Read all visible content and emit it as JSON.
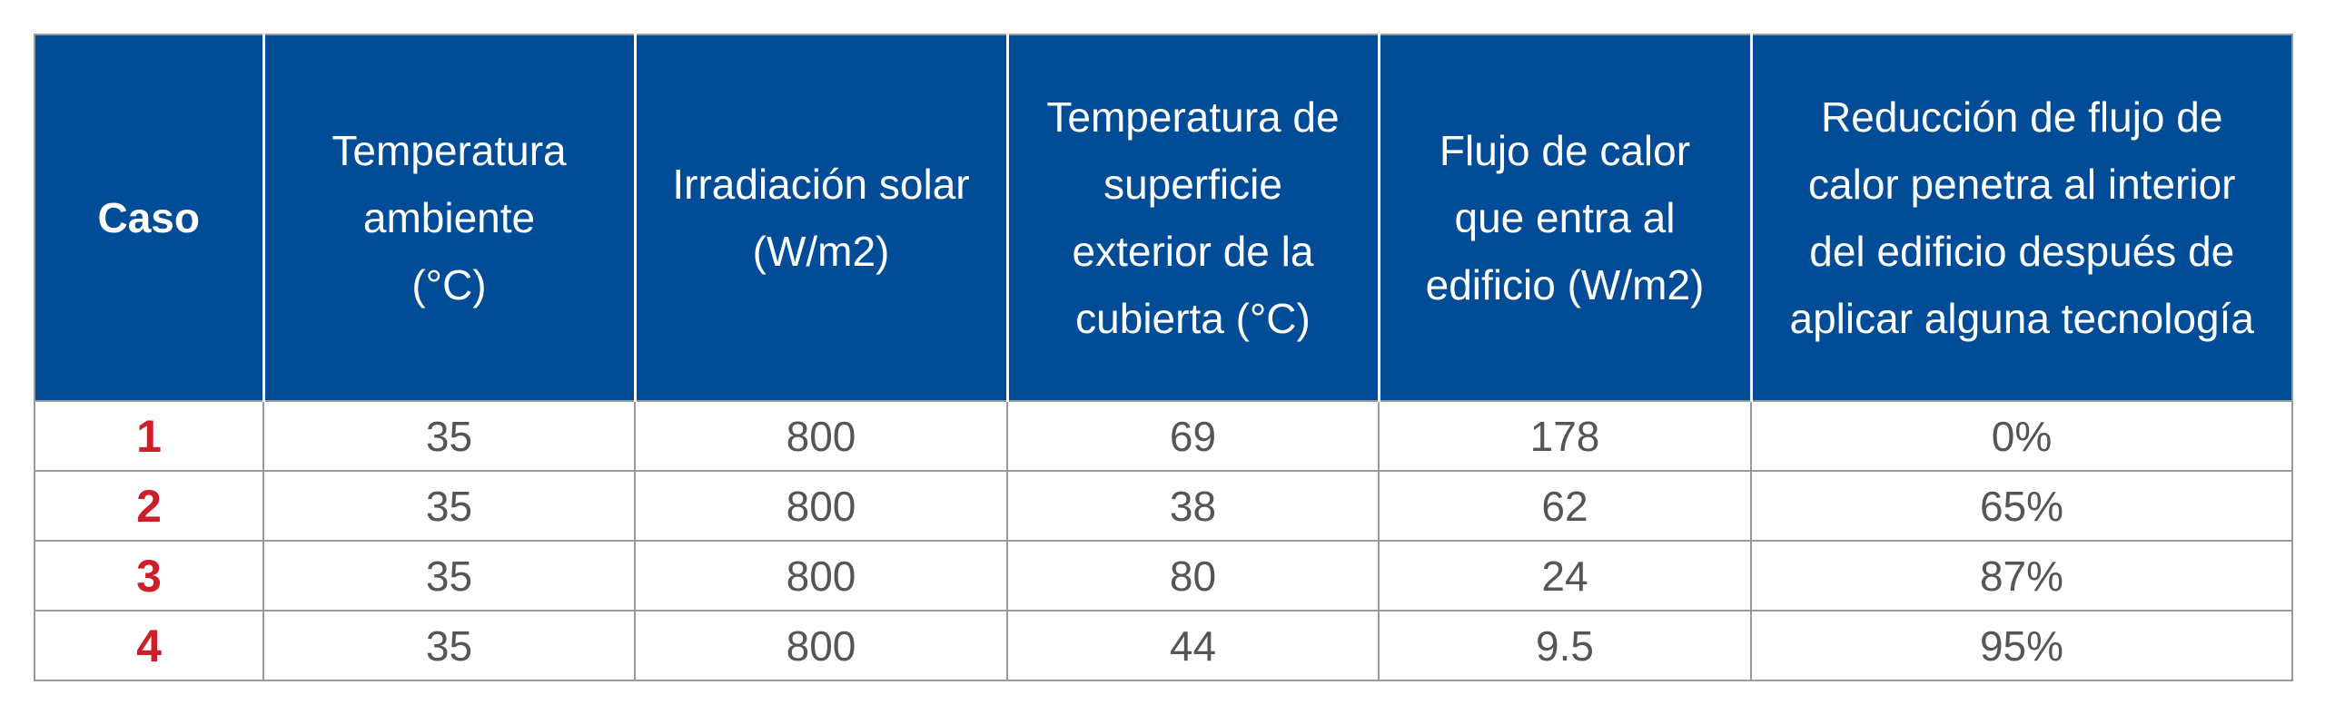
{
  "table": {
    "headers": [
      "Caso",
      "Temperatura ambiente (°C)",
      "Irradiación solar (W/m2)",
      "Temperatura de superficie exterior de la cubierta (°C)",
      "Flujo de calor que entra al edificio (W/m2)",
      "Reducción de flujo de calor penetra al interior del edificio después de aplicar alguna tecnología"
    ],
    "rows": [
      [
        "1",
        "35",
        "800",
        "69",
        "178",
        "0%"
      ],
      [
        "2",
        "35",
        "800",
        "38",
        "62",
        "65%"
      ],
      [
        "3",
        "35",
        "800",
        "80",
        "24",
        "87%"
      ],
      [
        "4",
        "35",
        "800",
        "44",
        "9.5",
        "95%"
      ]
    ]
  },
  "colors": {
    "header_background": "#004c97",
    "header_text": "#ffffff",
    "case_number": "#cc1f27",
    "cell_text": "#555555",
    "grid_line": "#9a9a9a"
  }
}
